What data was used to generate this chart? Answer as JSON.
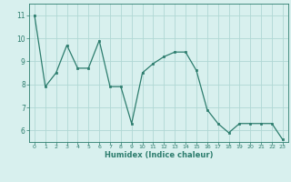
{
  "x": [
    0,
    1,
    2,
    3,
    4,
    5,
    6,
    7,
    8,
    9,
    10,
    11,
    12,
    13,
    14,
    15,
    16,
    17,
    18,
    19,
    20,
    21,
    22,
    23
  ],
  "y": [
    11.0,
    7.9,
    8.5,
    9.7,
    8.7,
    8.7,
    9.9,
    7.9,
    7.9,
    6.3,
    8.5,
    8.9,
    9.2,
    9.4,
    9.4,
    8.6,
    6.9,
    6.3,
    5.9,
    6.3,
    6.3,
    6.3,
    6.3,
    5.6
  ],
  "xlabel": "Humidex (Indice chaleur)",
  "ylim": [
    5.5,
    11.5
  ],
  "xlim": [
    -0.5,
    23.5
  ],
  "yticks": [
    6,
    7,
    8,
    9,
    10,
    11
  ],
  "xticks": [
    0,
    1,
    2,
    3,
    4,
    5,
    6,
    7,
    8,
    9,
    10,
    11,
    12,
    13,
    14,
    15,
    16,
    17,
    18,
    19,
    20,
    21,
    22,
    23
  ],
  "line_color": "#2d7d6e",
  "marker_color": "#2d7d6e",
  "bg_color": "#d8f0ee",
  "grid_color": "#b0d8d4",
  "tick_color": "#2d7d6e",
  "label_color": "#2d7d6e"
}
